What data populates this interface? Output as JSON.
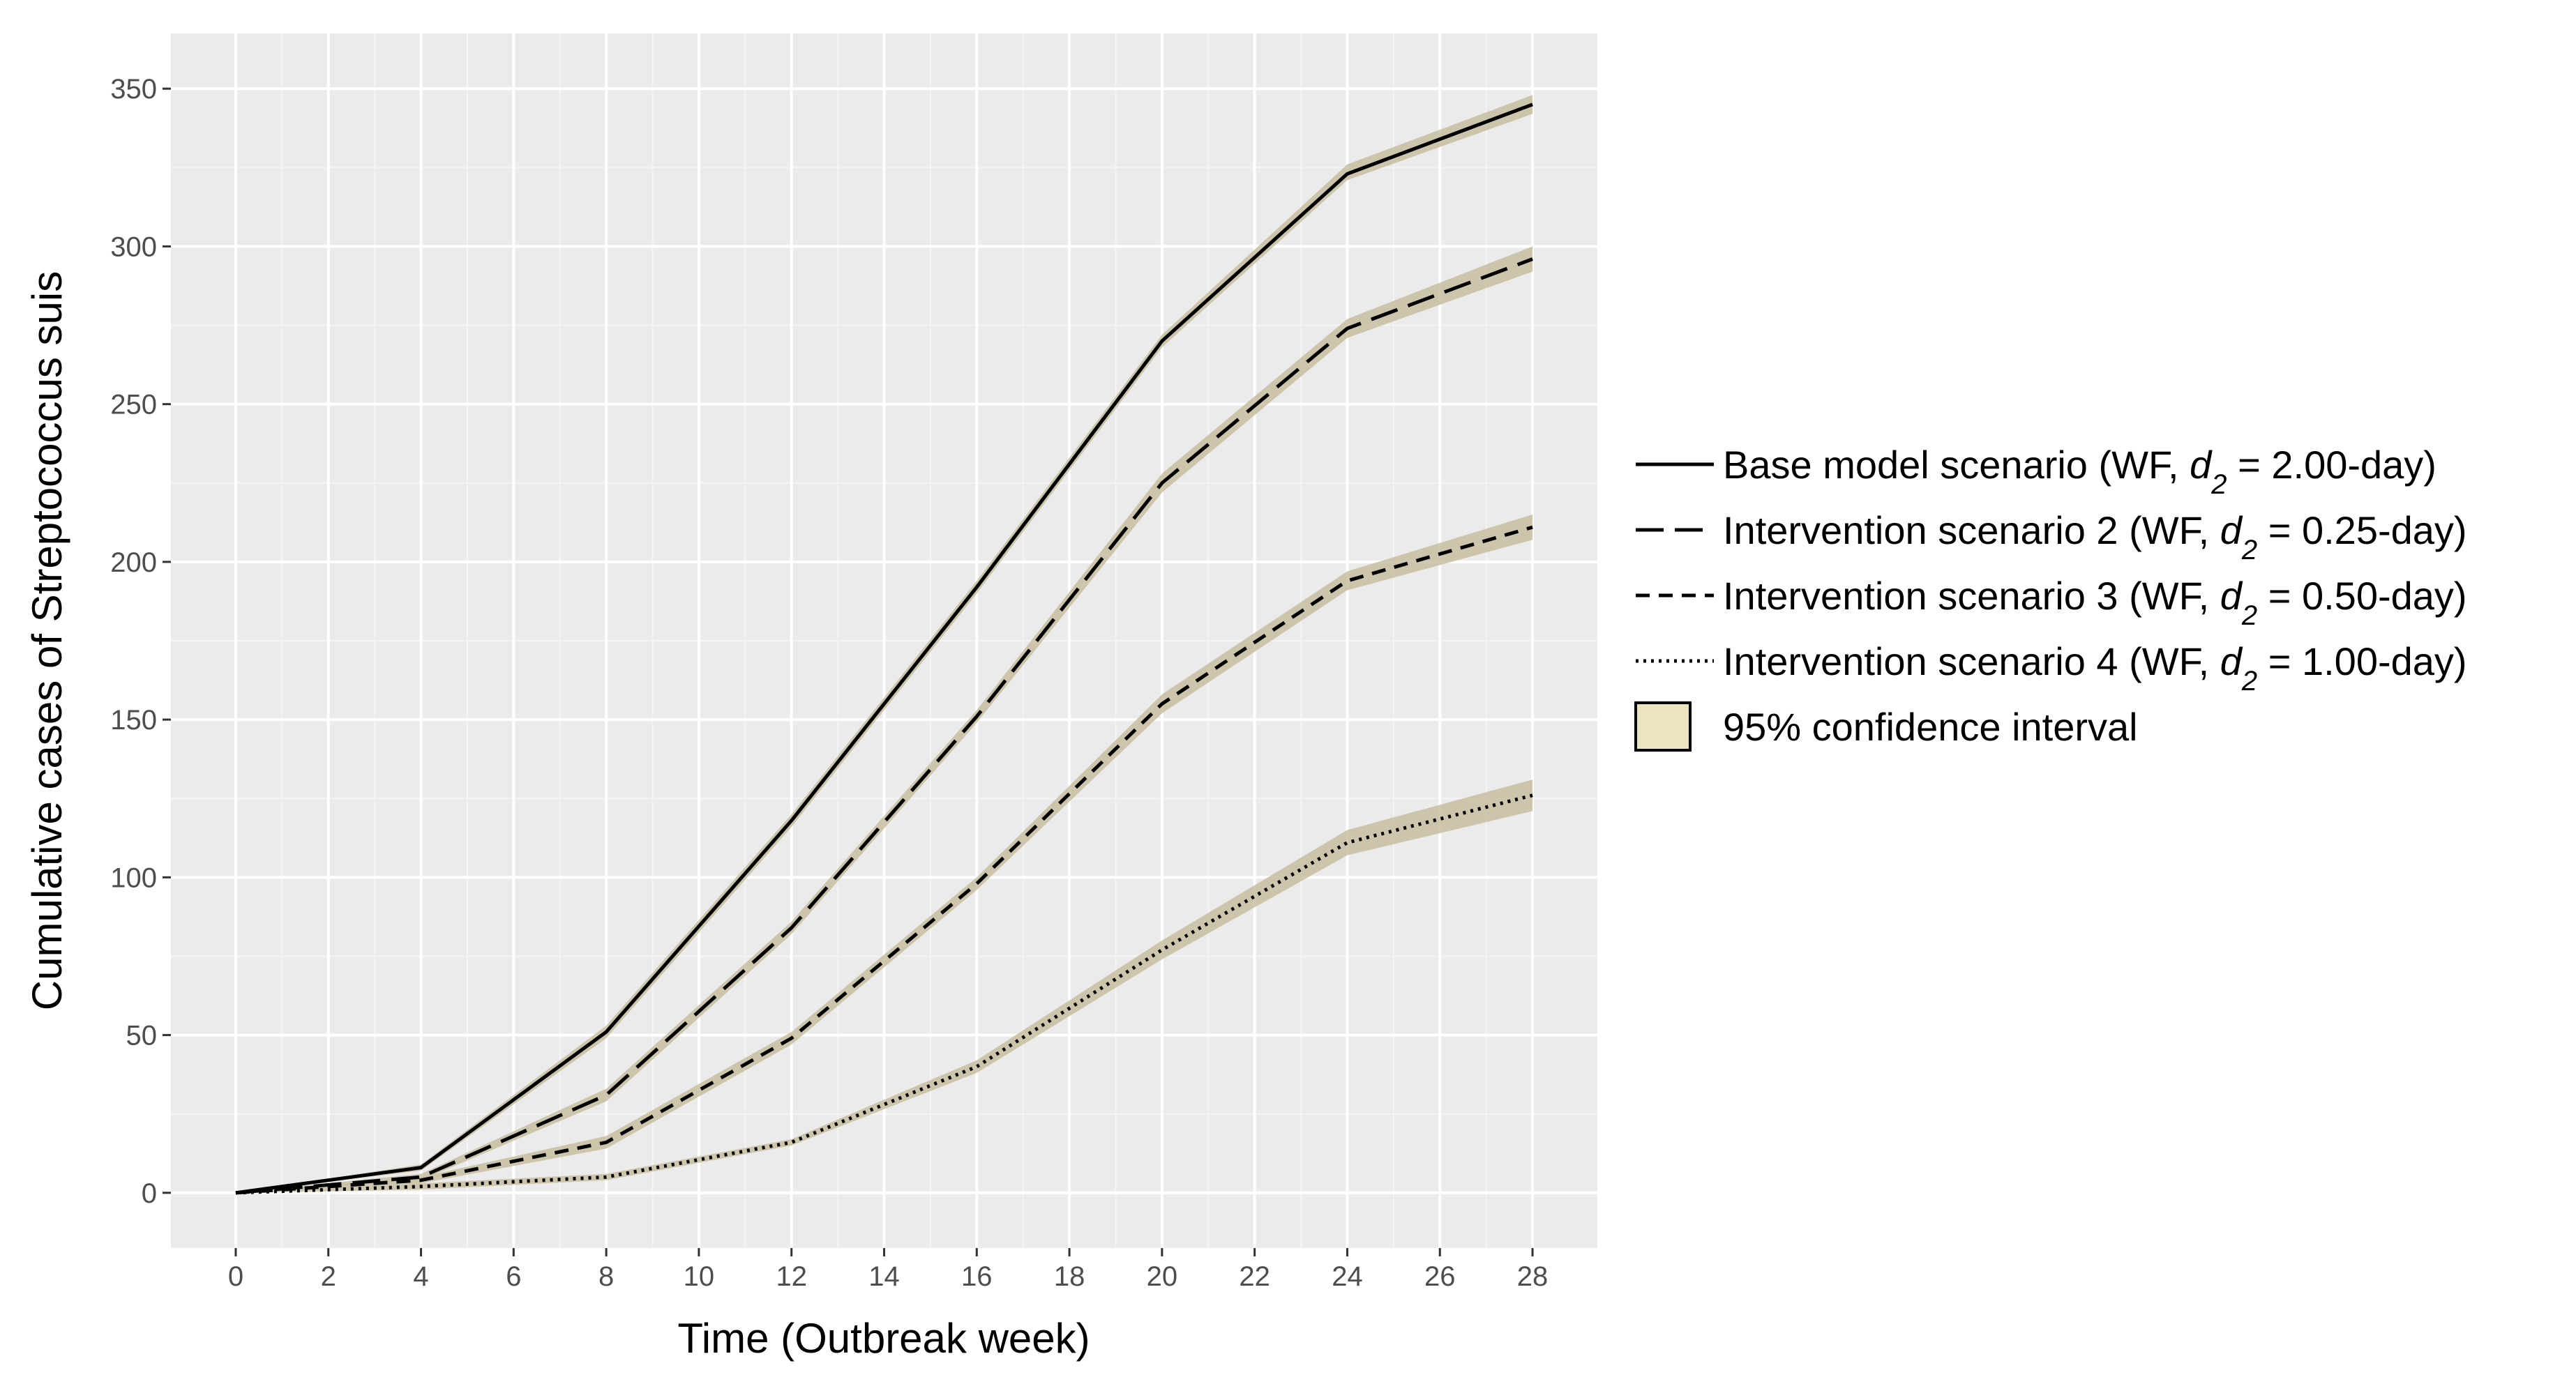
{
  "chart_data": {
    "type": "line",
    "title": "",
    "xlabel": "Time (Outbreak week)",
    "ylabel": "Cumulative cases of Streptococcus suis",
    "xlim": [
      -1.4,
      29.4
    ],
    "ylim": [
      -17.5,
      367.5
    ],
    "x_ticks": [
      "0",
      "2",
      "4",
      "6",
      "8",
      "10",
      "12",
      "14",
      "16",
      "18",
      "20",
      "22",
      "24",
      "26",
      "28"
    ],
    "y_ticks": [
      "0",
      "50",
      "100",
      "150",
      "200",
      "250",
      "300",
      "350"
    ],
    "x": [
      0,
      4,
      8,
      12,
      16,
      20,
      24,
      28
    ],
    "series": [
      {
        "name": "Base model scenario",
        "legend_prefix": "Base model scenario (WF, ",
        "legend_d": "d",
        "legend_sub": "2",
        "legend_suffix": " = 2.00-day)",
        "dash": "solid",
        "values": [
          0,
          8,
          51,
          118,
          192,
          270,
          323,
          345
        ],
        "ci_lower": [
          0,
          7,
          49,
          116,
          190,
          268,
          321,
          342
        ],
        "ci_upper": [
          0,
          9,
          53,
          120,
          194,
          272,
          326,
          348
        ]
      },
      {
        "name": "Intervention scenario 2",
        "legend_prefix": "Intervention scenario 2 (WF, ",
        "legend_d": "d",
        "legend_sub": "2",
        "legend_suffix": " = 0.25-day)",
        "dash": "longdash",
        "values": [
          0,
          5,
          31,
          84,
          151,
          225,
          274,
          296
        ],
        "ci_lower": [
          0,
          4,
          29,
          82,
          149,
          222,
          271,
          292
        ],
        "ci_upper": [
          0,
          6,
          33,
          86,
          153,
          228,
          277,
          300
        ]
      },
      {
        "name": "Intervention scenario 3",
        "legend_prefix": "Intervention scenario 3 (WF, ",
        "legend_d": "d",
        "legend_sub": "2",
        "legend_suffix": " = 0.50-day)",
        "dash": "dashed",
        "values": [
          0,
          4,
          16,
          49,
          98,
          155,
          194,
          211
        ],
        "ci_lower": [
          0,
          3,
          14,
          47,
          96,
          152,
          191,
          207
        ],
        "ci_upper": [
          0,
          5,
          18,
          51,
          100,
          158,
          197,
          215
        ]
      },
      {
        "name": "Intervention scenario 4",
        "legend_prefix": "Intervention scenario 4 (WF, ",
        "legend_d": "d",
        "legend_sub": "2",
        "legend_suffix": " = 1.00-day)",
        "dash": "dotted",
        "values": [
          0,
          2,
          5,
          16,
          40,
          77,
          111,
          126
        ],
        "ci_lower": [
          0,
          1,
          4,
          15,
          38,
          74,
          107,
          121
        ],
        "ci_upper": [
          0,
          3,
          6,
          17,
          42,
          80,
          115,
          131
        ]
      }
    ],
    "ci_legend_label": "95% confidence interval",
    "legend_position": "right",
    "grid": true,
    "colors": {
      "panel": "#ebebeb",
      "grid_major": "#ffffff",
      "grid_minor": "#f4f4f4",
      "line": "#000000",
      "ribbon": "#c8bea0",
      "ci_key_fill": "#ece3bf"
    }
  }
}
